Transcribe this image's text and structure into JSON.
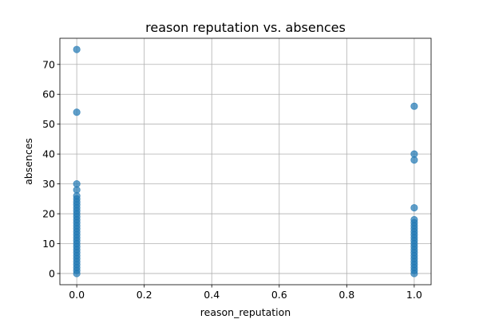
{
  "chart_data": {
    "type": "scatter",
    "title": "reason reputation vs. absences",
    "xlabel": "reason_reputation",
    "ylabel": "absences",
    "xlim": [
      -0.05,
      1.05
    ],
    "ylim": [
      -3.75,
      78.75
    ],
    "xticks": [
      0.0,
      0.2,
      0.4,
      0.6,
      0.8,
      1.0
    ],
    "xtick_labels": [
      "0.0",
      "0.2",
      "0.4",
      "0.6",
      "0.8",
      "1.0"
    ],
    "yticks": [
      0,
      10,
      20,
      30,
      40,
      50,
      60,
      70
    ],
    "ytick_labels": [
      "0",
      "10",
      "20",
      "30",
      "40",
      "50",
      "60",
      "70"
    ],
    "grid": true,
    "point_color": "#1f77b4",
    "point_alpha": 0.7,
    "series": [
      {
        "values": [
          {
            "x": 0,
            "y": 0
          },
          {
            "x": 0,
            "y": 1
          },
          {
            "x": 0,
            "y": 2
          },
          {
            "x": 0,
            "y": 3
          },
          {
            "x": 0,
            "y": 4
          },
          {
            "x": 0,
            "y": 5
          },
          {
            "x": 0,
            "y": 6
          },
          {
            "x": 0,
            "y": 7
          },
          {
            "x": 0,
            "y": 8
          },
          {
            "x": 0,
            "y": 9
          },
          {
            "x": 0,
            "y": 10
          },
          {
            "x": 0,
            "y": 11
          },
          {
            "x": 0,
            "y": 12
          },
          {
            "x": 0,
            "y": 13
          },
          {
            "x": 0,
            "y": 14
          },
          {
            "x": 0,
            "y": 15
          },
          {
            "x": 0,
            "y": 16
          },
          {
            "x": 0,
            "y": 17
          },
          {
            "x": 0,
            "y": 18
          },
          {
            "x": 0,
            "y": 19
          },
          {
            "x": 0,
            "y": 20
          },
          {
            "x": 0,
            "y": 21
          },
          {
            "x": 0,
            "y": 22
          },
          {
            "x": 0,
            "y": 23
          },
          {
            "x": 0,
            "y": 24
          },
          {
            "x": 0,
            "y": 25
          },
          {
            "x": 0,
            "y": 26
          },
          {
            "x": 0,
            "y": 28
          },
          {
            "x": 0,
            "y": 30
          },
          {
            "x": 0,
            "y": 54
          },
          {
            "x": 0,
            "y": 75
          },
          {
            "x": 1,
            "y": 0
          },
          {
            "x": 1,
            "y": 1
          },
          {
            "x": 1,
            "y": 2
          },
          {
            "x": 1,
            "y": 3
          },
          {
            "x": 1,
            "y": 4
          },
          {
            "x": 1,
            "y": 5
          },
          {
            "x": 1,
            "y": 6
          },
          {
            "x": 1,
            "y": 7
          },
          {
            "x": 1,
            "y": 8
          },
          {
            "x": 1,
            "y": 9
          },
          {
            "x": 1,
            "y": 10
          },
          {
            "x": 1,
            "y": 11
          },
          {
            "x": 1,
            "y": 12
          },
          {
            "x": 1,
            "y": 13
          },
          {
            "x": 1,
            "y": 14
          },
          {
            "x": 1,
            "y": 15
          },
          {
            "x": 1,
            "y": 16
          },
          {
            "x": 1,
            "y": 17
          },
          {
            "x": 1,
            "y": 18
          },
          {
            "x": 1,
            "y": 22
          },
          {
            "x": 1,
            "y": 38
          },
          {
            "x": 1,
            "y": 40
          },
          {
            "x": 1,
            "y": 56
          }
        ]
      }
    ]
  }
}
